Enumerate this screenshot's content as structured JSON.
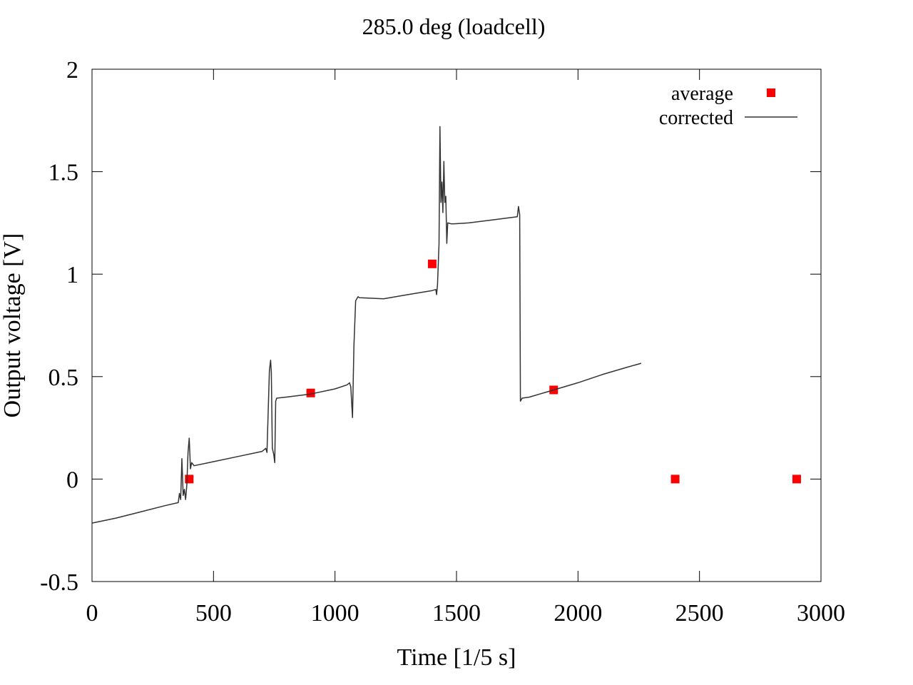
{
  "chart_data": {
    "type": "line",
    "title": "285.0 deg (loadcell)",
    "xlabel": "Time [1/5 s]",
    "ylabel": "Output voltage [V]",
    "xlim": [
      0,
      3000
    ],
    "ylim": [
      -0.5,
      2
    ],
    "x_ticks": [
      0,
      500,
      1000,
      1500,
      2000,
      2500,
      3000
    ],
    "x_tick_labels": [
      "0",
      "500",
      "1000",
      "1500",
      "2000",
      "2500",
      "3000"
    ],
    "y_ticks": [
      -0.5,
      0,
      0.5,
      1,
      1.5,
      2
    ],
    "y_tick_labels": [
      "-0.5",
      "0",
      "0.5",
      "1",
      "1.5",
      "2"
    ],
    "grid": false,
    "legend_position": "top-right",
    "series": [
      {
        "name": "average",
        "kind": "points",
        "marker": "square",
        "color": "#ff0000",
        "points": [
          [
            400,
            0.0
          ],
          [
            900,
            0.42
          ],
          [
            1400,
            1.05
          ],
          [
            1900,
            0.435
          ],
          [
            2400,
            0.0
          ],
          [
            2900,
            0.0
          ]
        ]
      },
      {
        "name": "corrected",
        "kind": "line",
        "color": "#333333",
        "points": [
          [
            0,
            -0.215
          ],
          [
            100,
            -0.19
          ],
          [
            200,
            -0.16
          ],
          [
            300,
            -0.13
          ],
          [
            355,
            -0.115
          ],
          [
            360,
            -0.07
          ],
          [
            365,
            -0.1
          ],
          [
            370,
            0.1
          ],
          [
            375,
            -0.08
          ],
          [
            380,
            -0.05
          ],
          [
            385,
            -0.1
          ],
          [
            390,
            -0.03
          ],
          [
            395,
            0.13
          ],
          [
            400,
            0.2
          ],
          [
            405,
            0.05
          ],
          [
            410,
            0.08
          ],
          [
            420,
            0.065
          ],
          [
            500,
            0.085
          ],
          [
            600,
            0.11
          ],
          [
            700,
            0.135
          ],
          [
            715,
            0.15
          ],
          [
            720,
            0.13
          ],
          [
            730,
            0.53
          ],
          [
            735,
            0.58
          ],
          [
            738,
            0.52
          ],
          [
            742,
            0.15
          ],
          [
            748,
            0.12
          ],
          [
            752,
            0.08
          ],
          [
            756,
            0.38
          ],
          [
            760,
            0.395
          ],
          [
            800,
            0.4
          ],
          [
            900,
            0.415
          ],
          [
            1000,
            0.44
          ],
          [
            1050,
            0.46
          ],
          [
            1060,
            0.47
          ],
          [
            1065,
            0.45
          ],
          [
            1072,
            0.3
          ],
          [
            1078,
            0.65
          ],
          [
            1085,
            0.87
          ],
          [
            1095,
            0.89
          ],
          [
            1100,
            0.885
          ],
          [
            1200,
            0.88
          ],
          [
            1300,
            0.9
          ],
          [
            1400,
            0.92
          ],
          [
            1415,
            0.925
          ],
          [
            1418,
            0.9
          ],
          [
            1422,
            0.95
          ],
          [
            1428,
            1.15
          ],
          [
            1432,
            1.72
          ],
          [
            1436,
            1.35
          ],
          [
            1440,
            1.45
          ],
          [
            1444,
            1.3
          ],
          [
            1448,
            1.55
          ],
          [
            1452,
            1.35
          ],
          [
            1456,
            1.38
          ],
          [
            1460,
            1.15
          ],
          [
            1464,
            1.25
          ],
          [
            1480,
            1.245
          ],
          [
            1550,
            1.25
          ],
          [
            1650,
            1.265
          ],
          [
            1750,
            1.28
          ],
          [
            1755,
            1.33
          ],
          [
            1760,
            1.29
          ],
          [
            1763,
            0.38
          ],
          [
            1770,
            0.395
          ],
          [
            1800,
            0.4
          ],
          [
            1900,
            0.435
          ],
          [
            2000,
            0.47
          ],
          [
            2100,
            0.51
          ],
          [
            2200,
            0.545
          ],
          [
            2260,
            0.565
          ]
        ]
      }
    ]
  }
}
